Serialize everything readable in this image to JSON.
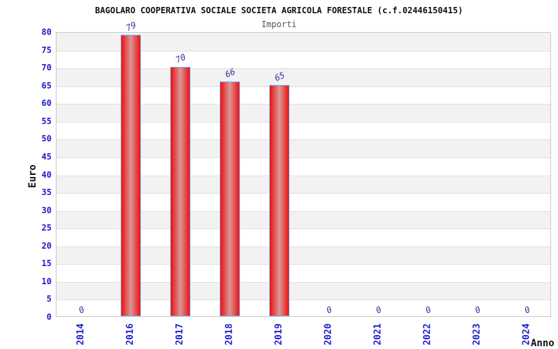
{
  "header": {
    "title": "BAGOLARO COOPERATIVA SOCIALE SOCIETA AGRICOLA FORESTALE (c.f.02446150415)",
    "subtitle": "Importi"
  },
  "chart_data": {
    "type": "bar",
    "title": "BAGOLARO COOPERATIVA SOCIALE SOCIETA AGRICOLA FORESTALE (c.f.02446150415)",
    "subtitle": "Importi",
    "xlabel": "Anno",
    "ylabel": "Euro",
    "categories": [
      "2014",
      "2016",
      "2017",
      "2018",
      "2019",
      "2020",
      "2021",
      "2022",
      "2023",
      "2024"
    ],
    "values": [
      0,
      79,
      70,
      66,
      65,
      0,
      0,
      0,
      0,
      0
    ],
    "value_labels": [
      "0",
      "79",
      "70",
      "66",
      "65",
      "0",
      "0",
      "0",
      "0",
      "0"
    ],
    "ylim": [
      0,
      80
    ],
    "ytick_step": 5,
    "yticks": [
      0,
      5,
      10,
      15,
      20,
      25,
      30,
      35,
      40,
      45,
      50,
      55,
      60,
      65,
      70,
      75,
      80
    ],
    "legend": "none",
    "grid": "horizontal-bands-alternating",
    "colors": {
      "bar_edge": "#ee1010",
      "bar_center": "#d89898",
      "bar_border": "#74aaec",
      "tick_label": "#1b1bd0",
      "value_label": "#333399",
      "band": "#f2f2f2",
      "gridline": "#e0e0e0",
      "plot_border": "#c8c8c8",
      "title": "#111111",
      "subtitle": "#555555"
    }
  }
}
